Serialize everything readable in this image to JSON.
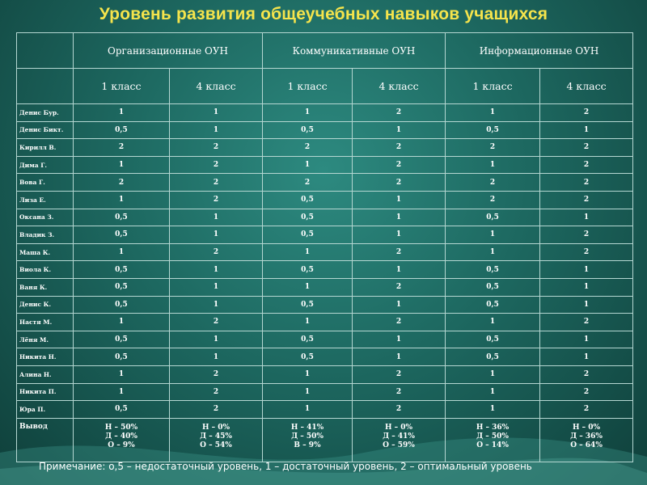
{
  "title": "Уровень развития общеучебных навыков учащихся",
  "groups": [
    "Организационные ОУН",
    "Коммуникативные ОУН",
    "Информационные ОУН"
  ],
  "grades": [
    "1 класс",
    "4 класс",
    "1 класс",
    "4 класс",
    "1 класс",
    "4 класс"
  ],
  "rows": [
    {
      "name": "Денис Бур.",
      "values": [
        "1",
        "1",
        "1",
        "2",
        "1",
        "2"
      ]
    },
    {
      "name": "Денис Бикт.",
      "values": [
        "0,5",
        "1",
        "0,5",
        "1",
        "0,5",
        "1"
      ]
    },
    {
      "name": "Кирилл В.",
      "values": [
        "2",
        "2",
        "2",
        "2",
        "2",
        "2"
      ]
    },
    {
      "name": "Дима Г.",
      "values": [
        "1",
        "2",
        "1",
        "2",
        "1",
        "2"
      ]
    },
    {
      "name": "Вова Г.",
      "values": [
        "2",
        "2",
        "2",
        "2",
        "2",
        "2"
      ]
    },
    {
      "name": "Лиза Е.",
      "values": [
        "1",
        "2",
        "0,5",
        "1",
        "2",
        "2"
      ]
    },
    {
      "name": "Оксана З.",
      "values": [
        "0,5",
        "1",
        "0,5",
        "1",
        "0,5",
        "1"
      ]
    },
    {
      "name": "Владик З.",
      "values": [
        "0,5",
        "1",
        "0,5",
        "1",
        "1",
        "2"
      ]
    },
    {
      "name": "Маша К.",
      "values": [
        "1",
        "2",
        "1",
        "2",
        "1",
        "2"
      ]
    },
    {
      "name": "Виола К.",
      "values": [
        "0,5",
        "1",
        "0,5",
        "1",
        "0,5",
        "1"
      ]
    },
    {
      "name": "Ваня К.",
      "values": [
        "0,5",
        "1",
        "1",
        "2",
        "0,5",
        "1"
      ]
    },
    {
      "name": "Денис К.",
      "values": [
        "0,5",
        "1",
        "0,5",
        "1",
        "0,5",
        "1"
      ]
    },
    {
      "name": "Настя М.",
      "values": [
        "1",
        "2",
        "1",
        "2",
        "1",
        "2"
      ]
    },
    {
      "name": "Лёня М.",
      "values": [
        "0,5",
        "1",
        "0,5",
        "1",
        "0,5",
        "1"
      ]
    },
    {
      "name": "Никита Н.",
      "values": [
        "0,5",
        "1",
        "0,5",
        "1",
        "0,5",
        "1"
      ]
    },
    {
      "name": "Алина Н.",
      "values": [
        "1",
        "2",
        "1",
        "2",
        "1",
        "2"
      ]
    },
    {
      "name": "Никита П.",
      "values": [
        "1",
        "2",
        "1",
        "2",
        "1",
        "2"
      ]
    },
    {
      "name": "Юра П.",
      "values": [
        "0,5",
        "2",
        "1",
        "2",
        "1",
        "2"
      ]
    }
  ],
  "summary": {
    "name": "Вывод",
    "values": [
      [
        "Н – 50%",
        "Д – 40%",
        "О – 9%"
      ],
      [
        "Н – 0%",
        "Д – 45%",
        "О – 54%"
      ],
      [
        "Н – 41%",
        "Д – 50%",
        "В – 9%"
      ],
      [
        "Н – 0%",
        "Д – 41%",
        "О – 59%"
      ],
      [
        "Н – 36%",
        "Д – 50%",
        "О – 14%"
      ],
      [
        "Н – 0%",
        "Д – 36%",
        "О – 64%"
      ]
    ]
  },
  "note": "Примечание: о,5 – недостаточный уровень, 1 – достаточный уровень, 2 – оптимальный уровень"
}
